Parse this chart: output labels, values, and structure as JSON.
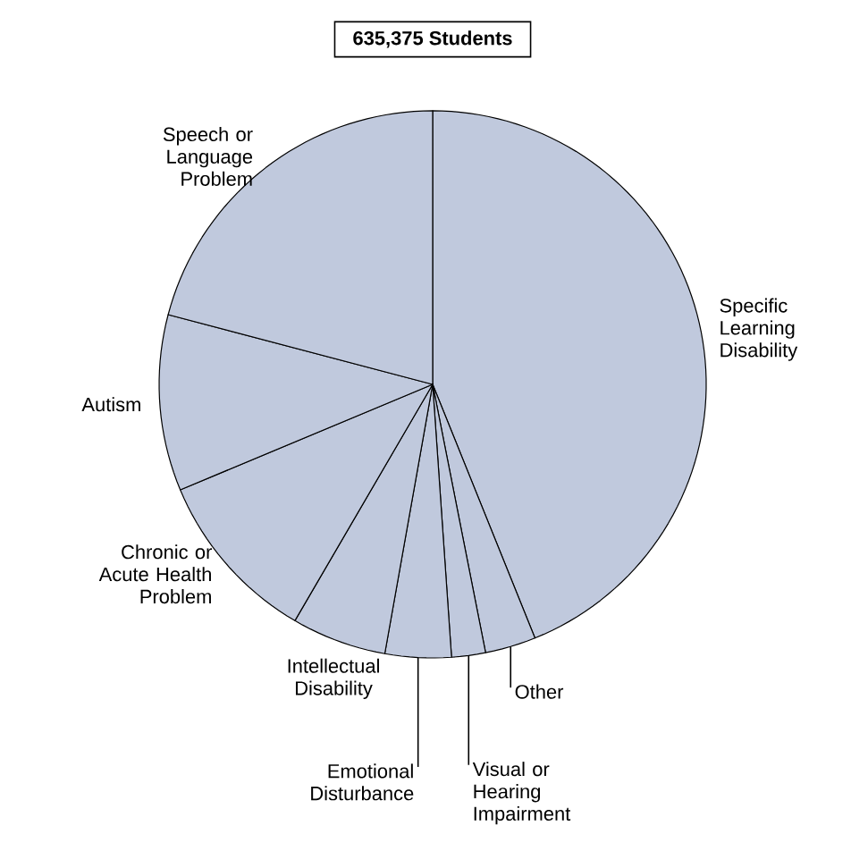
{
  "chart_data": {
    "type": "pie",
    "title": "635,375 Students",
    "categories": [
      "Specific Learning Disability",
      "Other",
      "Visual or Hearing Impairment",
      "Emotional Disturbance",
      "Intellectual Disability",
      "Chronic or Acute Health Problem",
      "Autism",
      "Speech or Language Problem"
    ],
    "values": [
      43.9,
      3.0,
      2.0,
      3.9,
      5.6,
      10.3,
      10.4,
      20.9
    ],
    "colors": [
      "#c0c9dd",
      "#c0c9dd",
      "#c0c9dd",
      "#c0c9dd",
      "#c0c9dd",
      "#c0c9dd",
      "#c0c9dd",
      "#c0c9dd"
    ]
  }
}
